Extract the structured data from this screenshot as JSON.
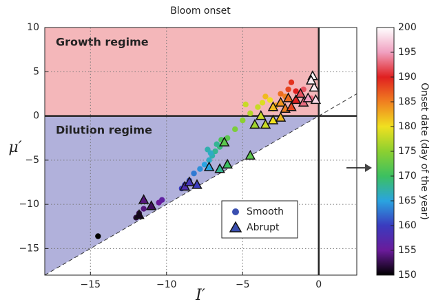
{
  "chart_data": {
    "type": "scatter",
    "title": "Bloom onset",
    "xlabel": "I′",
    "ylabel": "μ′",
    "xlim": [
      -18,
      2.5
    ],
    "ylim": [
      -18,
      10
    ],
    "xticks": [
      {
        "value": -15,
        "label": "−15"
      },
      {
        "value": -10,
        "label": "−10"
      },
      {
        "value": -5,
        "label": "−5"
      },
      0
    ],
    "yticks": [
      {
        "value": -15,
        "label": "−15"
      },
      {
        "value": -10,
        "label": "−10"
      },
      {
        "value": -5,
        "label": "−5"
      },
      0,
      5,
      10
    ],
    "grid": true,
    "regions": [
      {
        "name": "Growth regime",
        "color": "#f4b7ba",
        "text_color": "#e8262c"
      },
      {
        "name": "Dilution regime",
        "color": "#b1b1db",
        "text_color": "#3c3c9c"
      }
    ],
    "colorbar": {
      "label": "Onset date (day of the year)",
      "clim": [
        150,
        200
      ],
      "cticks": [
        150,
        155,
        160,
        165,
        170,
        175,
        180,
        185,
        190,
        195,
        200
      ],
      "colormap": [
        "#000000",
        "#6a1b9a",
        "#3a3bbf",
        "#2aa4e0",
        "#3cc060",
        "#8cd030",
        "#f0e020",
        "#f08020",
        "#e02020",
        "#f0a0c0",
        "#ffffff"
      ]
    },
    "legend_color": "#3a4fb0",
    "legend": "lower right",
    "series": [
      {
        "name": "Smooth",
        "marker": "circle",
        "x": [
          -14.5,
          -12,
          -11.8,
          -11.5,
          -11,
          -10.5,
          -10.3,
          -9,
          -8.8,
          -8.5,
          -8.2,
          -7.8,
          -7.5,
          -7.2,
          -7,
          -6.8,
          -6.5,
          -7.3,
          -6.2,
          -6,
          -5.5,
          -5,
          -4.5,
          -4,
          -3.7,
          -3.2,
          -4.8,
          -3.5,
          -2.5,
          -2,
          -1.5,
          -1,
          -0.5,
          -6.7,
          -7.1,
          -6.4,
          -3,
          -2.2,
          -1.8,
          -2.8
        ],
        "y": [
          -13.6,
          -11.5,
          -11,
          -10.5,
          -10.2,
          -9.8,
          -9.5,
          -8.2,
          -7.8,
          -7.3,
          -6.5,
          -6,
          -5.5,
          -5,
          -4.5,
          -4,
          -3.5,
          -3.8,
          -3,
          -2.5,
          -1.5,
          -0.5,
          0.3,
          1,
          1.5,
          1.8,
          1.3,
          2.2,
          2.5,
          3,
          2.8,
          3,
          2,
          -3.2,
          -4.2,
          -2.7,
          0.8,
          2.2,
          3.8,
          1.2
        ],
        "c": [
          150,
          152,
          153,
          154,
          155,
          155,
          156,
          160,
          160,
          161,
          163,
          164,
          165,
          166,
          167,
          168,
          169,
          167,
          170,
          172,
          174,
          175,
          177,
          178,
          179,
          180,
          178,
          182,
          186,
          188,
          190,
          192,
          193,
          168,
          166,
          171,
          180,
          185,
          189,
          183
        ]
      },
      {
        "name": "Abrupt",
        "marker": "triangle",
        "x": [
          -11.8,
          -11.5,
          -11,
          -8.8,
          -8.5,
          -8,
          -7.2,
          -6.5,
          -6,
          -6.2,
          -4.5,
          -4.2,
          -3.8,
          -3.5,
          -3,
          -2.5,
          -3,
          -2.5,
          -2,
          -2.2,
          -1.5,
          -1.2,
          -1,
          -0.7,
          -0.4,
          -0.3,
          -0.2,
          -0.5,
          -1.8
        ],
        "y": [
          -11.2,
          -9.5,
          -10.2,
          -8,
          -7.5,
          -7.8,
          -5.8,
          -6,
          -5.5,
          -3,
          -4.5,
          -1,
          0,
          -1,
          -0.5,
          -0.2,
          1,
          1.5,
          2,
          0.8,
          1.8,
          2.5,
          1.5,
          2,
          4.5,
          3.2,
          1.8,
          4,
          1
        ],
        "c": [
          151,
          154,
          153,
          158,
          159,
          160,
          165,
          168,
          170,
          172,
          172,
          176,
          178,
          178,
          180,
          182,
          182,
          184,
          186,
          185,
          190,
          192,
          193,
          195,
          200,
          199,
          198,
          199,
          188
        ]
      }
    ]
  }
}
